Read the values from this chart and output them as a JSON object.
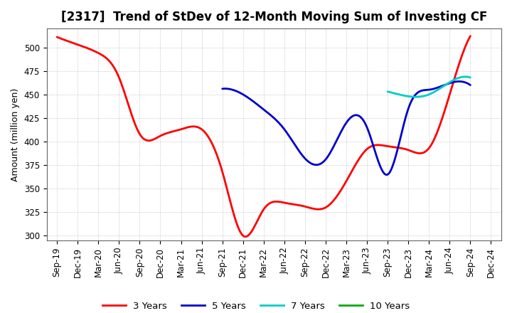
{
  "title": "[2317]  Trend of StDev of 12-Month Moving Sum of Investing CF",
  "ylabel": "Amount (million yen)",
  "x_labels": [
    "Sep-19",
    "Dec-19",
    "Mar-20",
    "Jun-20",
    "Sep-20",
    "Dec-20",
    "Mar-21",
    "Jun-21",
    "Sep-21",
    "Dec-21",
    "Mar-22",
    "Jun-22",
    "Sep-22",
    "Dec-22",
    "Mar-23",
    "Jun-23",
    "Sep-23",
    "Dec-23",
    "Mar-24",
    "Jun-24",
    "Sep-24",
    "Dec-24"
  ],
  "ylim": [
    295,
    520
  ],
  "yticks": [
    300,
    325,
    350,
    375,
    400,
    425,
    450,
    475,
    500
  ],
  "series": {
    "3 Years": {
      "color": "#FF0000",
      "linewidth": 2.0,
      "data_x": [
        0,
        1,
        2,
        3,
        4,
        5,
        6,
        7,
        8,
        9,
        10,
        11,
        12,
        13,
        14,
        15,
        16,
        17,
        18,
        19,
        20
      ],
      "data_y": [
        511,
        503,
        494,
        468,
        408,
        406,
        413,
        413,
        368,
        300,
        328,
        335,
        331,
        330,
        358,
        392,
        395,
        391,
        393,
        450,
        512
      ]
    },
    "5 Years": {
      "color": "#0000CC",
      "linewidth": 2.0,
      "data_x": [
        8,
        9,
        10,
        11,
        12,
        13,
        14,
        15,
        16,
        17,
        18,
        19,
        20
      ],
      "data_y": [
        456,
        450,
        434,
        413,
        382,
        381,
        420,
        415,
        365,
        435,
        455,
        462,
        460
      ]
    },
    "7 Years": {
      "color": "#00CCCC",
      "linewidth": 2.0,
      "data_x": [
        16,
        17,
        18,
        19,
        20
      ],
      "data_y": [
        453,
        448,
        450,
        463,
        468
      ]
    },
    "10 Years": {
      "color": "#00AA00",
      "linewidth": 2.0,
      "data_x": [],
      "data_y": []
    }
  },
  "legend_order": [
    "3 Years",
    "5 Years",
    "7 Years",
    "10 Years"
  ],
  "background_color": "#FFFFFF",
  "grid_color": "#999999",
  "title_fontsize": 12,
  "label_fontsize": 9,
  "tick_fontsize": 8.5
}
